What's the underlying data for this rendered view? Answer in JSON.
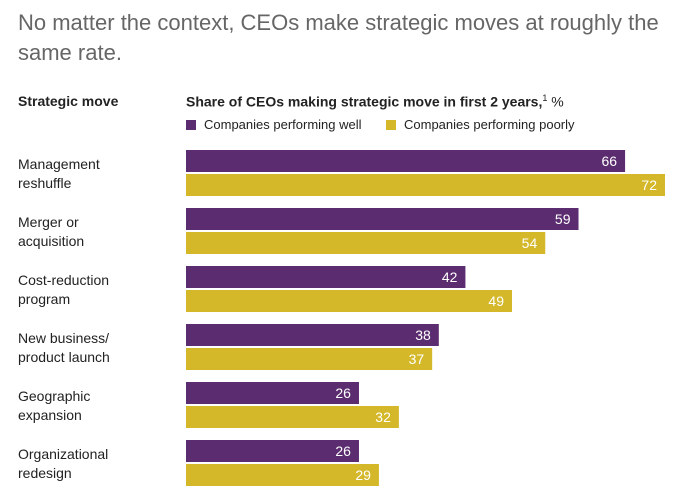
{
  "title": "No matter the context, CEOs make strategic moves at roughly the same rate.",
  "headers": {
    "left": "Strategic move",
    "right": "Share of CEOs making strategic move in first 2 years,",
    "footnote_mark": "1",
    "unit": "%"
  },
  "colors": {
    "well": "#5b2c6f",
    "poorly": "#d4b82a",
    "label_text": "#ffffff"
  },
  "chart_data": {
    "type": "bar",
    "orientation": "horizontal",
    "title": "No matter the context, CEOs make strategic moves at roughly the same rate.",
    "xlabel": "Share of CEOs making strategic move in first 2 years, %",
    "ylabel": "Strategic move",
    "xlim": [
      0,
      72
    ],
    "grid": false,
    "legend_position": "top",
    "categories": [
      [
        "Management",
        "reshuffle"
      ],
      [
        "Merger or",
        "acquisition"
      ],
      [
        "Cost-reduction",
        "program"
      ],
      [
        "New business/",
        "product launch"
      ],
      [
        "Geographic",
        "expansion"
      ],
      [
        "Organizational",
        "redesign"
      ]
    ],
    "series": [
      {
        "name": "Companies performing well",
        "color": "#5b2c6f",
        "values": [
          66,
          59,
          42,
          38,
          26,
          26
        ]
      },
      {
        "name": "Companies performing poorly",
        "color": "#d4b82a",
        "values": [
          72,
          54,
          49,
          37,
          32,
          29
        ]
      }
    ]
  }
}
